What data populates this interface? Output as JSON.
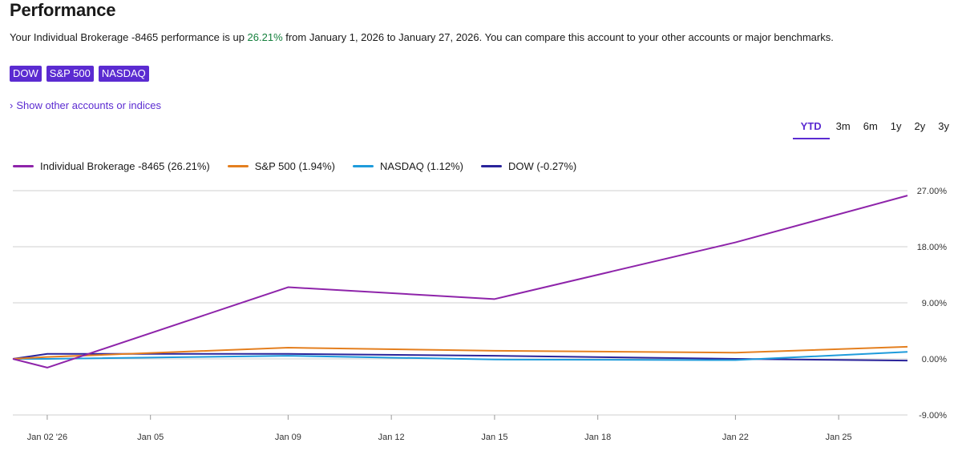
{
  "header": {
    "title": "Performance",
    "summary_prefix": "Your Individual Brokerage -8465 performance is up ",
    "summary_pct": "26.21%",
    "summary_suffix": " from January 1, 2026 to January 27, 2026. You can compare this account to your other accounts or major benchmarks."
  },
  "benchmarks": [
    "DOW",
    "S&P 500",
    "NASDAQ"
  ],
  "show_other_label": "Show other accounts or indices",
  "ranges": [
    {
      "label": "YTD",
      "active": true
    },
    {
      "label": "3m",
      "active": false
    },
    {
      "label": "6m",
      "active": false
    },
    {
      "label": "1y",
      "active": false
    },
    {
      "label": "2y",
      "active": false
    },
    {
      "label": "3y",
      "active": false
    }
  ],
  "colors": {
    "accent": "#5b2bd1",
    "positive": "#15803d"
  },
  "chart_data": {
    "type": "line",
    "x": [
      "2026-01-01",
      "2026-01-02",
      "2026-01-09",
      "2026-01-15",
      "2026-01-22",
      "2026-01-27"
    ],
    "x_ticks": [
      {
        "date": "2026-01-02",
        "label": "Jan 02 '26"
      },
      {
        "date": "2026-01-05",
        "label": "Jan 05"
      },
      {
        "date": "2026-01-09",
        "label": "Jan 09"
      },
      {
        "date": "2026-01-12",
        "label": "Jan 12"
      },
      {
        "date": "2026-01-15",
        "label": "Jan 15"
      },
      {
        "date": "2026-01-18",
        "label": "Jan 18"
      },
      {
        "date": "2026-01-22",
        "label": "Jan 22"
      },
      {
        "date": "2026-01-25",
        "label": "Jan 25"
      }
    ],
    "y_ticks": [
      27,
      18,
      9,
      0,
      -9
    ],
    "y_tick_labels": [
      "27.00%",
      "18.00%",
      "9.00%",
      "0.00%",
      "-9.00%"
    ],
    "ylim": [
      -9,
      27
    ],
    "grid": true,
    "legend_position": "top-left",
    "series": [
      {
        "name": "Individual Brokerage -8465 (26.21%)",
        "color": "#8e24aa",
        "values": [
          0,
          -1.4,
          11.5,
          9.6,
          18.7,
          26.21
        ]
      },
      {
        "name": "S&P 500 (1.94%)",
        "color": "#e47f1f",
        "values": [
          0,
          0.3,
          1.8,
          1.3,
          1.0,
          1.94
        ]
      },
      {
        "name": "NASDAQ (1.12%)",
        "color": "#1e9bdb",
        "values": [
          0,
          0.0,
          0.5,
          -0.1,
          -0.2,
          1.12
        ]
      },
      {
        "name": "DOW (-0.27%)",
        "color": "#2a249b",
        "values": [
          0,
          0.8,
          0.8,
          0.5,
          0.0,
          -0.27
        ]
      }
    ]
  }
}
